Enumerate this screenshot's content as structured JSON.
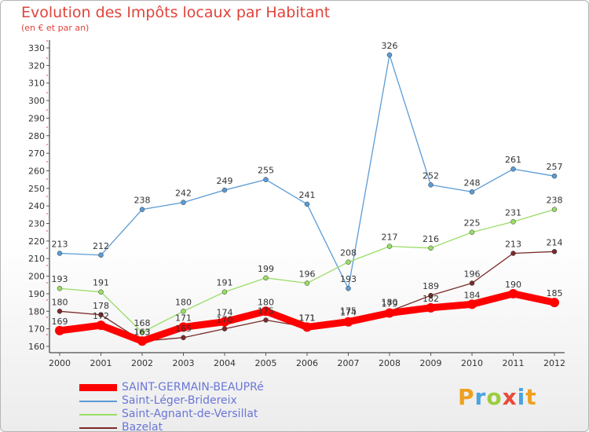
{
  "chart_data": {
    "type": "line",
    "title": "Evolution des Impôts locaux par Habitant",
    "subtitle": "(en € et par an)",
    "x": [
      "2000",
      "2001",
      "2002",
      "2003",
      "2004",
      "2005",
      "2006",
      "2007",
      "2008",
      "2009",
      "2010",
      "2011",
      "2012"
    ],
    "ylim": [
      160,
      330
    ],
    "yticks": [
      160,
      170,
      180,
      190,
      200,
      210,
      220,
      230,
      240,
      250,
      260,
      270,
      280,
      290,
      300,
      310,
      320,
      330
    ],
    "grid": false,
    "legend_position": "bottom-left",
    "series": [
      {
        "name": "SAINT-GERMAIN-BEAUPRé",
        "color": "#ff0000",
        "values": [
          169,
          172,
          163,
          171,
          174,
          180,
          171,
          174,
          179,
          182,
          184,
          190,
          185
        ]
      },
      {
        "name": "Saint-Léger-Bridereix",
        "color": "#5b9bd5",
        "values": [
          213,
          212,
          238,
          242,
          249,
          255,
          241,
          193,
          326,
          252,
          248,
          261,
          257
        ]
      },
      {
        "name": "Saint-Agnant-de-Versillat",
        "color": "#99dd66",
        "values": [
          193,
          191,
          168,
          180,
          191,
          199,
          196,
          208,
          217,
          216,
          225,
          231,
          238
        ]
      },
      {
        "name": "Bazelat",
        "color": "#7a2a2a",
        "values": [
          180,
          178,
          163,
          165,
          170,
          175,
          171,
          175,
          180,
          189,
          196,
          213,
          214
        ]
      }
    ]
  },
  "logo": {
    "text": [
      "P",
      "r",
      "o",
      "x",
      "i",
      "t",
      "i"
    ]
  }
}
